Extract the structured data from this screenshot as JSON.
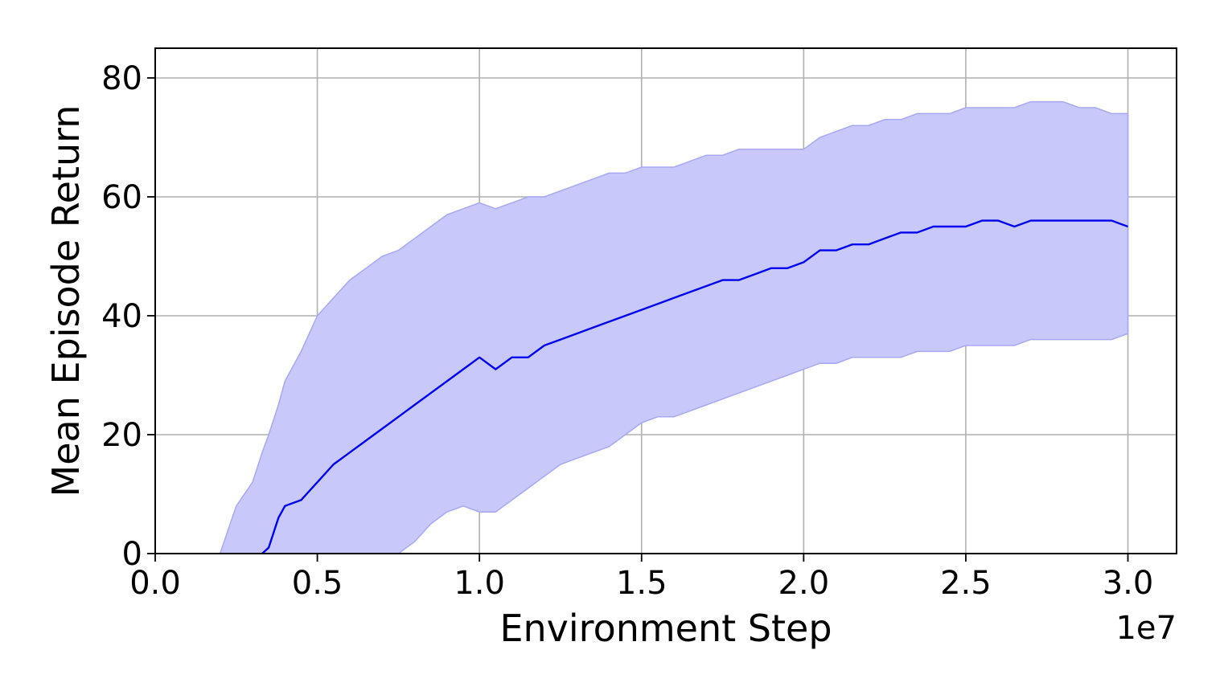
{
  "chart_data": {
    "type": "line",
    "title": "",
    "xlabel": "Environment Step",
    "ylabel": "Mean Episode Return",
    "x_offset_label": "1e7",
    "xlim": [
      0.0,
      3.15
    ],
    "ylim": [
      0,
      85
    ],
    "x_ticks": [
      0.0,
      0.5,
      1.0,
      1.5,
      2.0,
      2.5,
      3.0
    ],
    "x_tick_labels": [
      "0.0",
      "0.5",
      "1.0",
      "1.5",
      "2.0",
      "2.5",
      "3.0"
    ],
    "y_ticks": [
      0,
      20,
      40,
      60,
      80
    ],
    "y_tick_labels": [
      "0",
      "20",
      "40",
      "60",
      "80"
    ],
    "grid": true,
    "legend": "none",
    "series": [
      {
        "color": "#0000ee",
        "band_color": "#c8c8fa",
        "band_edge_color": "#a8a8f2",
        "x": [
          0.2,
          0.25,
          0.3,
          0.33,
          0.35,
          0.38,
          0.4,
          0.45,
          0.5,
          0.55,
          0.6,
          0.65,
          0.7,
          0.75,
          0.8,
          0.85,
          0.9,
          0.95,
          1.0,
          1.05,
          1.1,
          1.15,
          1.2,
          1.25,
          1.3,
          1.35,
          1.4,
          1.45,
          1.5,
          1.55,
          1.6,
          1.65,
          1.7,
          1.75,
          1.8,
          1.85,
          1.9,
          1.95,
          2.0,
          2.05,
          2.1,
          2.15,
          2.2,
          2.25,
          2.3,
          2.35,
          2.4,
          2.45,
          2.5,
          2.55,
          2.6,
          2.65,
          2.7,
          2.75,
          2.8,
          2.85,
          2.9,
          2.95,
          3.0
        ],
        "mean": [
          null,
          null,
          null,
          0,
          1,
          6,
          8,
          9,
          12,
          15,
          17,
          19,
          21,
          23,
          25,
          27,
          29,
          31,
          33,
          31,
          33,
          33,
          35,
          36,
          37,
          38,
          39,
          40,
          41,
          42,
          43,
          44,
          45,
          46,
          46,
          47,
          48,
          48,
          49,
          51,
          51,
          52,
          52,
          53,
          54,
          54,
          55,
          55,
          55,
          56,
          56,
          55,
          56,
          56,
          56,
          56,
          56,
          56,
          55
        ],
        "upper": [
          0,
          8,
          12,
          17,
          20,
          25,
          29,
          34,
          40,
          43,
          46,
          48,
          50,
          51,
          53,
          55,
          57,
          58,
          59,
          58,
          59,
          60,
          60,
          61,
          62,
          63,
          64,
          64,
          65,
          65,
          65,
          66,
          67,
          67,
          68,
          68,
          68,
          68,
          68,
          70,
          71,
          72,
          72,
          73,
          73,
          74,
          74,
          74,
          75,
          75,
          75,
          75,
          76,
          76,
          76,
          75,
          75,
          74,
          74
        ],
        "lower": [
          null,
          null,
          null,
          null,
          null,
          null,
          null,
          null,
          null,
          null,
          null,
          null,
          null,
          0,
          2,
          5,
          7,
          8,
          7,
          7,
          9,
          11,
          13,
          15,
          16,
          17,
          18,
          20,
          22,
          23,
          23,
          24,
          25,
          26,
          27,
          28,
          29,
          30,
          31,
          32,
          32,
          33,
          33,
          33,
          33,
          34,
          34,
          34,
          35,
          35,
          35,
          35,
          36,
          36,
          36,
          36,
          36,
          36,
          37
        ]
      }
    ]
  }
}
